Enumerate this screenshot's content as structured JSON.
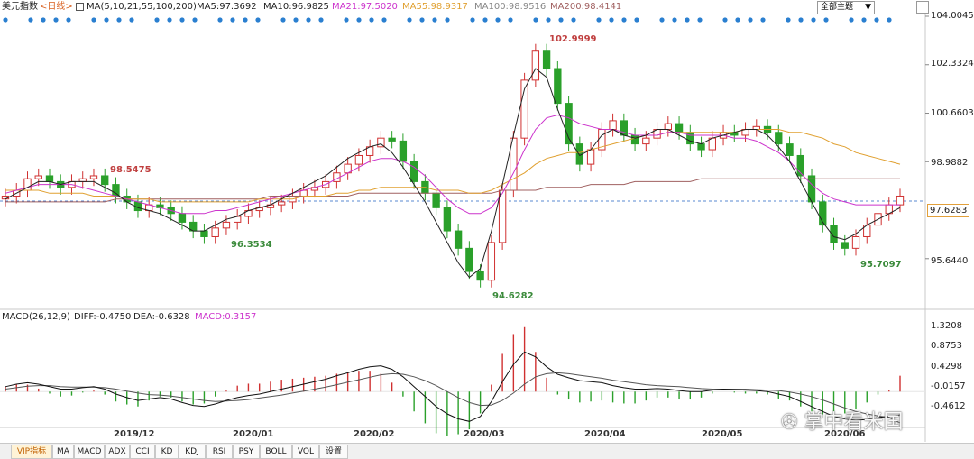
{
  "header": {
    "symbol": "美元指数",
    "period": "<日线>",
    "ma_params": "MA(5,10,21,55,100,200)",
    "ma5": "MA5:97.3692",
    "ma10": "MA10:96.9825",
    "ma21": "MA21:97.5020",
    "ma55": "MA55:98.9317",
    "ma100": "MA100:98.9516",
    "ma200": "MA200:98.4141",
    "topic_select": "全部主题",
    "colors": {
      "ma5": "#222222",
      "ma10": "#333333",
      "ma21": "#cc33cc",
      "ma55": "#e0a030",
      "ma100": "#999999",
      "ma200": "#a06060",
      "up": "#d03030",
      "down": "#2aa02a"
    }
  },
  "price_axis": [
    "104.0045",
    "102.3324",
    "100.6603",
    "98.9882",
    "97.6283",
    "95.6440"
  ],
  "annotations": {
    "high": "102.9999",
    "low": "94.6282",
    "left_high": "98.5475",
    "left_low": "96.3534",
    "recent_low": "95.7097"
  },
  "macd": {
    "params": "MACD(26,12,9)",
    "diff": "DIFF:-0.4750",
    "dea": "DEA:-0.6328",
    "macd": "MACD:0.3157",
    "axis": [
      "1.3208",
      "0.8753",
      "0.4298",
      "-0.0157",
      "-0.4612"
    ]
  },
  "dates": [
    "2019/12",
    "2020/01",
    "2020/02",
    "2020/03",
    "2020/04",
    "2020/05",
    "2020/06"
  ],
  "tabs": [
    "VIP指标",
    "MA",
    "MACD",
    "ADX",
    "CCI",
    "KD",
    "KDJ",
    "RSI",
    "PSY",
    "BOLL",
    "VOL",
    "设置"
  ],
  "watermark": "掌中看米国",
  "chart_data": {
    "type": "candlestick",
    "series_name": "美元指数",
    "ylim": [
      94.3,
      104.0045
    ],
    "x": [
      "2019/12",
      "2020/01",
      "2020/02",
      "2020/03",
      "2020/04",
      "2020/05",
      "2020/06"
    ],
    "close_path": [
      97.8,
      98.0,
      98.4,
      98.5,
      98.3,
      98.1,
      98.3,
      98.4,
      98.5,
      98.2,
      97.8,
      97.6,
      97.3,
      97.5,
      97.4,
      97.2,
      96.9,
      96.6,
      96.4,
      96.7,
      96.9,
      97.1,
      97.3,
      97.4,
      97.5,
      97.6,
      97.8,
      98.0,
      98.1,
      98.3,
      98.6,
      98.9,
      99.2,
      99.5,
      99.8,
      99.7,
      99.0,
      98.3,
      97.9,
      97.4,
      96.6,
      96.0,
      95.2,
      94.9,
      96.2,
      98.0,
      99.8,
      101.8,
      102.8,
      102.2,
      101.0,
      99.6,
      98.9,
      99.4,
      100.1,
      100.4,
      99.9,
      99.6,
      99.8,
      100.1,
      100.3,
      100.0,
      99.6,
      99.4,
      99.8,
      100.0,
      99.9,
      100.1,
      100.2,
      100.0,
      99.6,
      99.2,
      98.5,
      97.6,
      96.8,
      96.2,
      96.0,
      96.4,
      96.8,
      97.2,
      97.5,
      97.8
    ],
    "ma5_path": [
      97.7,
      97.9,
      98.1,
      98.3,
      98.3,
      98.2,
      98.3,
      98.3,
      98.3,
      98.1,
      97.9,
      97.6,
      97.4,
      97.3,
      97.2,
      97.0,
      96.8,
      96.6,
      96.6,
      96.8,
      97.0,
      97.1,
      97.3,
      97.4,
      97.5,
      97.7,
      97.9,
      98.1,
      98.3,
      98.5,
      98.8,
      99.1,
      99.3,
      99.5,
      99.6,
      99.3,
      98.8,
      98.2,
      97.6,
      96.9,
      96.2,
      95.5,
      95.0,
      95.3,
      96.6,
      98.2,
      99.9,
      101.5,
      102.2,
      101.9,
      100.8,
      99.8,
      99.2,
      99.4,
      99.9,
      100.1,
      99.9,
      99.8,
      99.9,
      100.1,
      100.1,
      99.9,
      99.7,
      99.6,
      99.8,
      99.9,
      100.0,
      100.1,
      100.1,
      99.9,
      99.5,
      99.0,
      98.3,
      97.6,
      96.9,
      96.4,
      96.3,
      96.5,
      96.8,
      97.0,
      97.2,
      97.4
    ],
    "ma21_path": [
      97.9,
      98.0,
      98.1,
      98.2,
      98.2,
      98.2,
      98.2,
      98.1,
      98.0,
      97.9,
      97.8,
      97.7,
      97.6,
      97.5,
      97.4,
      97.3,
      97.2,
      97.2,
      97.2,
      97.3,
      97.3,
      97.4,
      97.5,
      97.6,
      97.7,
      97.8,
      97.9,
      98.0,
      98.1,
      98.2,
      98.4,
      98.6,
      98.8,
      99.0,
      99.1,
      99.1,
      99.0,
      98.8,
      98.5,
      98.1,
      97.7,
      97.4,
      97.2,
      97.2,
      97.4,
      97.9,
      98.6,
      99.4,
      100.1,
      100.5,
      100.6,
      100.5,
      100.3,
      100.2,
      100.1,
      100.1,
      100.0,
      99.9,
      99.9,
      99.9,
      100.0,
      100.0,
      99.9,
      99.9,
      99.9,
      99.9,
      99.8,
      99.8,
      99.7,
      99.5,
      99.3,
      99.0,
      98.6,
      98.2,
      97.9,
      97.7,
      97.6,
      97.5,
      97.5,
      97.5,
      97.5,
      97.5
    ],
    "ma55_path": [
      98.0,
      98.0,
      98.0,
      98.0,
      97.9,
      97.9,
      97.9,
      97.9,
      97.8,
      97.8,
      97.8,
      97.7,
      97.7,
      97.7,
      97.6,
      97.6,
      97.6,
      97.6,
      97.6,
      97.6,
      97.6,
      97.6,
      97.6,
      97.7,
      97.7,
      97.7,
      97.7,
      97.8,
      97.8,
      97.8,
      97.9,
      97.9,
      98.0,
      98.0,
      98.1,
      98.1,
      98.1,
      98.1,
      98.1,
      98.0,
      98.0,
      98.0,
      97.9,
      97.9,
      98.0,
      98.2,
      98.4,
      98.6,
      98.9,
      99.1,
      99.2,
      99.3,
      99.3,
      99.4,
      99.5,
      99.6,
      99.7,
      99.8,
      99.9,
      99.9,
      100.0,
      100.0,
      100.0,
      100.0,
      100.0,
      100.0,
      100.0,
      100.1,
      100.1,
      100.1,
      100.1,
      100.0,
      100.0,
      99.9,
      99.8,
      99.6,
      99.5,
      99.3,
      99.2,
      99.1,
      99.0,
      98.9
    ],
    "ma200_path": [
      97.6,
      97.6,
      97.6,
      97.6,
      97.6,
      97.6,
      97.6,
      97.6,
      97.6,
      97.6,
      97.7,
      97.7,
      97.7,
      97.7,
      97.7,
      97.7,
      97.7,
      97.7,
      97.7,
      97.7,
      97.7,
      97.7,
      97.7,
      97.7,
      97.8,
      97.8,
      97.8,
      97.8,
      97.8,
      97.8,
      97.8,
      97.8,
      97.9,
      97.9,
      97.9,
      97.9,
      97.9,
      97.9,
      97.9,
      97.9,
      97.9,
      97.9,
      97.9,
      97.9,
      97.9,
      98.0,
      98.0,
      98.0,
      98.0,
      98.1,
      98.1,
      98.1,
      98.1,
      98.2,
      98.2,
      98.2,
      98.2,
      98.3,
      98.3,
      98.3,
      98.3,
      98.3,
      98.3,
      98.4,
      98.4,
      98.4,
      98.4,
      98.4,
      98.4,
      98.4,
      98.4,
      98.4,
      98.4,
      98.4,
      98.4,
      98.4,
      98.4,
      98.4,
      98.4,
      98.4,
      98.4,
      98.4
    ],
    "macd_ylim": [
      -0.65,
      1.35
    ],
    "diff_path": [
      0.1,
      0.15,
      0.18,
      0.15,
      0.1,
      0.05,
      0.05,
      0.08,
      0.1,
      0.05,
      -0.05,
      -0.12,
      -0.18,
      -0.15,
      -0.12,
      -0.15,
      -0.22,
      -0.28,
      -0.3,
      -0.25,
      -0.18,
      -0.12,
      -0.08,
      -0.05,
      0.0,
      0.05,
      0.1,
      0.15,
      0.2,
      0.25,
      0.32,
      0.38,
      0.45,
      0.5,
      0.52,
      0.45,
      0.3,
      0.1,
      -0.1,
      -0.3,
      -0.45,
      -0.55,
      -0.6,
      -0.5,
      -0.2,
      0.2,
      0.55,
      0.8,
      0.7,
      0.5,
      0.35,
      0.28,
      0.22,
      0.2,
      0.18,
      0.12,
      0.08,
      0.05,
      0.05,
      0.06,
      0.05,
      0.02,
      0.0,
      0.0,
      0.03,
      0.05,
      0.04,
      0.03,
      0.02,
      0.0,
      -0.05,
      -0.1,
      -0.2,
      -0.3,
      -0.4,
      -0.5,
      -0.55,
      -0.58,
      -0.56,
      -0.52,
      -0.5,
      -0.47
    ],
    "dea_path": [
      0.05,
      0.08,
      0.11,
      0.12,
      0.12,
      0.1,
      0.09,
      0.09,
      0.09,
      0.08,
      0.05,
      0.01,
      -0.03,
      -0.06,
      -0.07,
      -0.09,
      -0.12,
      -0.15,
      -0.18,
      -0.2,
      -0.19,
      -0.18,
      -0.16,
      -0.13,
      -0.1,
      -0.07,
      -0.03,
      0.01,
      0.05,
      0.09,
      0.14,
      0.19,
      0.24,
      0.29,
      0.34,
      0.36,
      0.35,
      0.3,
      0.22,
      0.12,
      0.0,
      -0.12,
      -0.22,
      -0.28,
      -0.27,
      -0.18,
      -0.03,
      0.15,
      0.3,
      0.36,
      0.38,
      0.36,
      0.33,
      0.3,
      0.27,
      0.23,
      0.2,
      0.17,
      0.14,
      0.12,
      0.11,
      0.1,
      0.08,
      0.06,
      0.05,
      0.05,
      0.05,
      0.05,
      0.04,
      0.03,
      0.02,
      -0.01,
      -0.05,
      -0.1,
      -0.17,
      -0.25,
      -0.33,
      -0.4,
      -0.45,
      -0.49,
      -0.52,
      -0.63
    ],
    "macd_hist": [
      0.1,
      0.14,
      0.14,
      0.06,
      -0.04,
      -0.1,
      -0.08,
      -0.02,
      0.02,
      -0.06,
      -0.2,
      -0.26,
      -0.3,
      -0.18,
      -0.1,
      -0.12,
      -0.2,
      -0.26,
      -0.24,
      -0.1,
      0.02,
      0.12,
      0.16,
      0.16,
      0.2,
      0.24,
      0.26,
      0.28,
      0.3,
      0.32,
      0.36,
      0.38,
      0.42,
      0.42,
      0.36,
      0.18,
      -0.1,
      -0.4,
      -0.64,
      -0.84,
      -0.9,
      -0.86,
      -0.76,
      -0.44,
      0.14,
      0.76,
      1.16,
      1.3,
      0.8,
      0.28,
      -0.06,
      -0.16,
      -0.22,
      -0.2,
      -0.18,
      -0.22,
      -0.24,
      -0.24,
      -0.18,
      -0.12,
      -0.12,
      -0.16,
      -0.16,
      -0.12,
      -0.04,
      0.0,
      -0.02,
      -0.04,
      -0.04,
      -0.06,
      -0.14,
      -0.18,
      -0.3,
      -0.4,
      -0.46,
      -0.5,
      -0.44,
      -0.36,
      -0.22,
      -0.06,
      0.04,
      0.32
    ]
  }
}
